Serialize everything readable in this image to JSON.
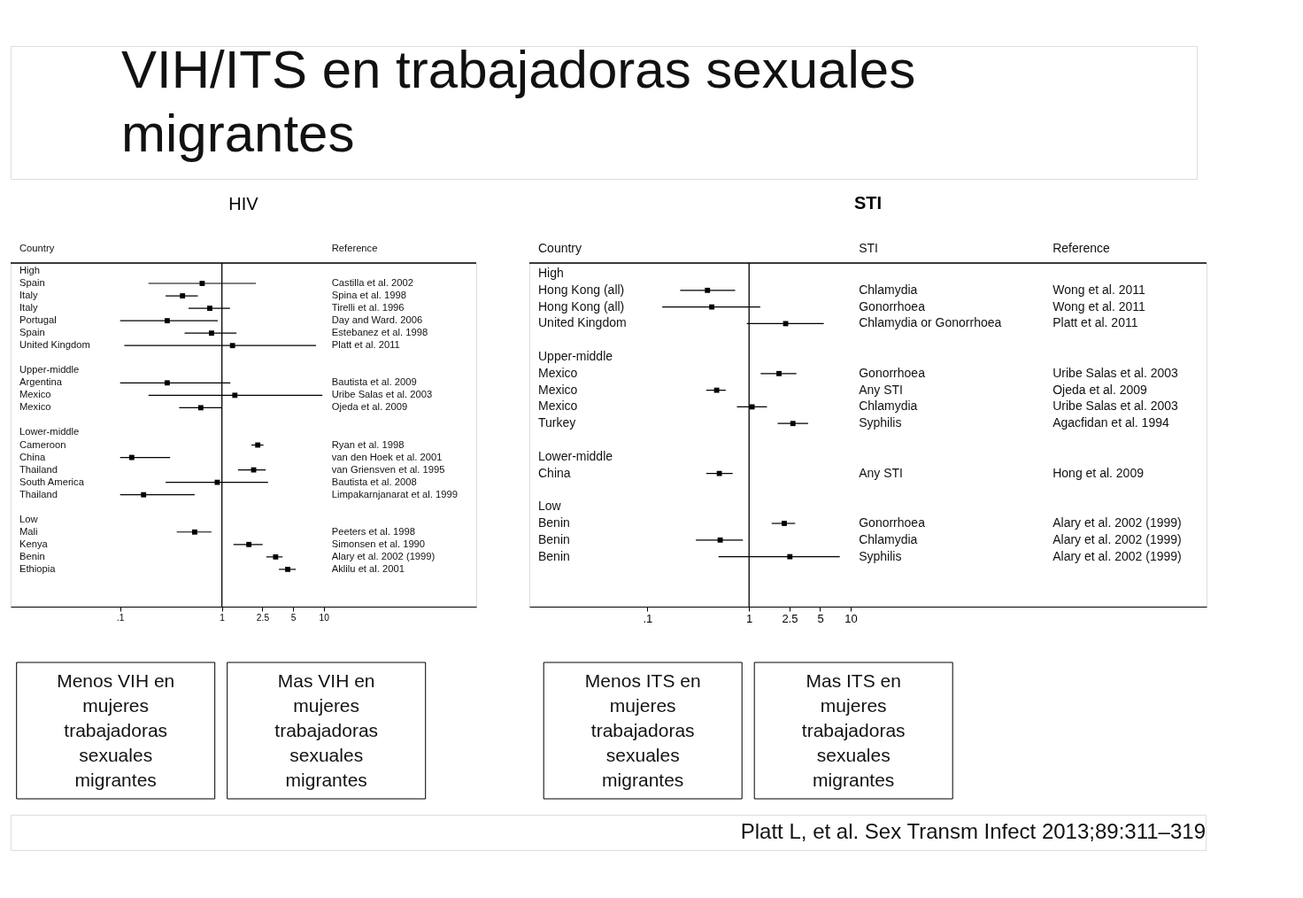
{
  "chart_data": [
    {
      "type": "other",
      "title": "VIH/ITS en trabajadoras sexuales migrantes",
      "annotations": [
        "Platt L, et al. Sex Transm Infect 2013;89:311–319"
      ]
    },
    {
      "type": "scatter",
      "orientation": "horizontal",
      "title": "HIV",
      "ylabel": "Country",
      "y2label": "Reference",
      "log": "x",
      "marker": "square",
      "color": "#000000",
      "categories": [
        "High",
        "Spain",
        "Italy",
        "Italy",
        "Portugal",
        "Spain",
        "United Kingdom",
        null,
        "Upper-middle",
        "Argentina",
        "Mexico",
        "Mexico",
        null,
        "Lower-middle",
        "Cameroon",
        "China",
        "Thailand",
        "South America",
        "Thailand",
        null,
        "Low",
        "Mali",
        "Kenya",
        "Benin",
        "Ethiopia"
      ],
      "y2_categories": [
        null,
        "Castilla et al. 2002",
        "Spina et al. 1998",
        "Tirelli et al. 1996",
        "Day and Ward. 2006",
        "Estebanez et al. 1998",
        "Platt et al. 2011",
        null,
        null,
        "Bautista et al. 2009",
        "Uribe Salas et al. 2003",
        "Ojeda et al. 2009",
        null,
        null,
        "Ryan et al. 1998",
        "van den Hoek et al. 2001",
        "van Griensven et al. 1995",
        "Bautista et al. 2008",
        "Limpakarnjanarat et al. 1999",
        null,
        null,
        "Peeters et al. 1998",
        "Simonsen et al. 1990",
        "Alary et al. 2002 (1999)",
        "Aklilu et al. 2001"
      ],
      "values": [
        null,
        0.64,
        0.41,
        0.76,
        0.29,
        0.79,
        1.27,
        null,
        null,
        0.29,
        1.34,
        0.62,
        null,
        null,
        2.25,
        0.13,
        2.05,
        0.9,
        0.17,
        null,
        null,
        0.54,
        1.84,
        3.37,
        4.43
      ],
      "errors": [
        null,
        [
          0.19,
          2.16
        ],
        [
          0.28,
          0.58
        ],
        [
          0.47,
          1.2
        ],
        [
          0.1,
          0.91
        ],
        [
          0.43,
          1.39
        ],
        [
          0.11,
          8.4
        ],
        null,
        null,
        [
          0.1,
          1.21
        ],
        [
          0.19,
          9.7
        ],
        [
          0.38,
          1.0
        ],
        null,
        null,
        [
          1.95,
          2.56
        ],
        [
          0.1,
          0.31
        ],
        [
          1.44,
          2.69
        ],
        [
          0.28,
          2.84
        ],
        [
          0.1,
          0.54
        ],
        null,
        null,
        [
          0.36,
          0.79
        ],
        [
          1.3,
          2.51
        ],
        [
          2.73,
          3.94
        ],
        [
          3.63,
          5.32
        ]
      ],
      "xlim": [
        0.0084,
        315
      ],
      "xticks": [
        {
          "value": 0.1,
          "label": ".1"
        },
        1,
        2.5,
        5,
        10
      ],
      "ref_lines": [
        {
          "axis": "x",
          "value": 1
        }
      ],
      "annotations": [
        "Menos VIH en mujeres trabajadoras sexuales migrantes",
        "Mas VIH en mujeres trabajadoras sexuales migrantes"
      ]
    },
    {
      "type": "scatter",
      "orientation": "horizontal",
      "title": "STI",
      "ylabel": "Country",
      "y2label": "STI",
      "log": "x",
      "marker": "square",
      "color": "#000000",
      "categories": [
        "High",
        "Hong Kong (all)",
        "Hong Kong (all)",
        "United Kingdom",
        null,
        "Upper-middle",
        "Mexico",
        "Mexico",
        "Mexico",
        "Turkey",
        null,
        "Lower-middle",
        "China",
        null,
        "Low",
        "Benin",
        "Benin",
        "Benin"
      ],
      "y2_categories": [
        null,
        "Chlamydia",
        "Gonorrhoea",
        "Chlamydia or Gonorrhoea",
        null,
        null,
        "Gonorrhoea",
        "Any STI",
        "Chlamydia",
        "Syphilis",
        null,
        null,
        "Any STI",
        null,
        null,
        "Gonorrhoea",
        "Chlamydia",
        "Syphilis"
      ],
      "values": [
        null,
        0.39,
        0.43,
        2.29,
        null,
        null,
        1.97,
        0.48,
        1.07,
        2.7,
        null,
        null,
        0.51,
        null,
        null,
        2.22,
        0.52,
        2.52
      ],
      "errors": [
        null,
        [
          0.21,
          0.73
        ],
        [
          0.14,
          1.29
        ],
        [
          0.95,
          5.43
        ],
        null,
        null,
        [
          1.3,
          2.92
        ],
        [
          0.38,
          0.59
        ],
        [
          0.76,
          1.5
        ],
        [
          1.91,
          3.81
        ],
        null,
        null,
        [
          0.38,
          0.69
        ],
        null,
        null,
        [
          1.67,
          2.84
        ],
        [
          0.3,
          0.87
        ],
        [
          0.5,
          7.8
        ]
      ],
      "xlim": [
        0.0069,
        31600
      ],
      "xticks": [
        {
          "value": 0.1,
          "label": ".1"
        },
        1,
        2.5,
        5,
        10
      ],
      "ref_lines": [
        {
          "axis": "x",
          "value": 1
        }
      ],
      "annotations": [
        "Menos ITS en mujeres trabajadoras sexuales migrantes",
        "Mas ITS en mujeres trabajadoras sexuales migrantes"
      ]
    },
    {
      "type": "other",
      "title": "Reference",
      "annotations": [
        "Wong et al. 2011",
        "Wong et al. 2011",
        "Platt et al. 2011",
        "Uribe Salas et al. 2003",
        "Ojeda et al. 2009",
        "Uribe Salas et al. 2003",
        "Agacfidan et al. 1994",
        "Hong et al. 2009",
        "Alary et al. 2002 (1999)",
        "Alary et al. 2002 (1999)",
        "Alary et al. 2002 (1999)"
      ]
    }
  ]
}
